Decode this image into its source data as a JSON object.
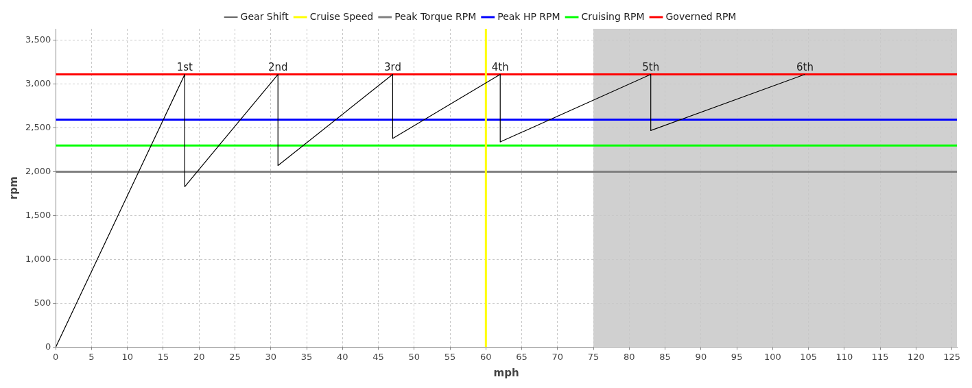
{
  "chart_data": {
    "type": "line",
    "xlabel": "mph",
    "ylabel": "rpm",
    "series": [
      {
        "name": "Gear Shift",
        "color": "#000000",
        "x": [
          0,
          18,
          18,
          31,
          31,
          47,
          47,
          62,
          62,
          83,
          83,
          104.5
        ],
        "values": [
          0,
          3110,
          1830,
          3110,
          2070,
          3110,
          2380,
          3110,
          2340,
          3110,
          2470,
          3110
        ]
      },
      {
        "name": "Cruise Speed",
        "color": "#ffff00",
        "x": [
          60,
          60
        ],
        "values": [
          0,
          3630
        ]
      },
      {
        "name": "Peak Torque RPM",
        "color": "#808080",
        "x": [
          0,
          125.7
        ],
        "values": [
          2000,
          2000
        ]
      },
      {
        "name": "Peak HP RPM",
        "color": "#0000ff",
        "x": [
          0,
          125.7
        ],
        "values": [
          2595,
          2595
        ]
      },
      {
        "name": "Cruising RPM",
        "color": "#00ff00",
        "x": [
          0,
          125.7
        ],
        "values": [
          2300,
          2300
        ]
      },
      {
        "name": "Governed RPM",
        "color": "#ff0000",
        "x": [
          0,
          125.7
        ],
        "values": [
          3110,
          3110
        ]
      }
    ],
    "bands": [
      {
        "axis": "x",
        "from": 75,
        "to": 125.7,
        "color": "#c8c8c8"
      }
    ],
    "annotations": [
      {
        "text": "1st",
        "x": 18,
        "y": 3110
      },
      {
        "text": "2nd",
        "x": 31,
        "y": 3110
      },
      {
        "text": "3rd",
        "x": 47,
        "y": 3110
      },
      {
        "text": "4th",
        "x": 62,
        "y": 3110
      },
      {
        "text": "5th",
        "x": 83,
        "y": 3110
      },
      {
        "text": "6th",
        "x": 104.5,
        "y": 3110
      }
    ],
    "xlim": [
      0,
      125.7
    ],
    "ylim": [
      0,
      3630
    ],
    "xticks": [
      0,
      5,
      10,
      15,
      20,
      25,
      30,
      35,
      40,
      45,
      50,
      55,
      60,
      65,
      70,
      75,
      80,
      85,
      90,
      95,
      100,
      105,
      110,
      115,
      120,
      125
    ],
    "yticks": [
      0,
      {
        "value": 500,
        "label": "500"
      },
      {
        "value": 1000,
        "label": "1,000"
      },
      {
        "value": 1500,
        "label": "1,500"
      },
      {
        "value": 2000,
        "label": "2,000"
      },
      {
        "value": 2500,
        "label": "2,500"
      },
      {
        "value": 3000,
        "label": "3,000"
      },
      {
        "value": 3500,
        "label": "3,500"
      }
    ],
    "grid": true,
    "legend": "top",
    "marker": "none",
    "line_style": "solid"
  }
}
